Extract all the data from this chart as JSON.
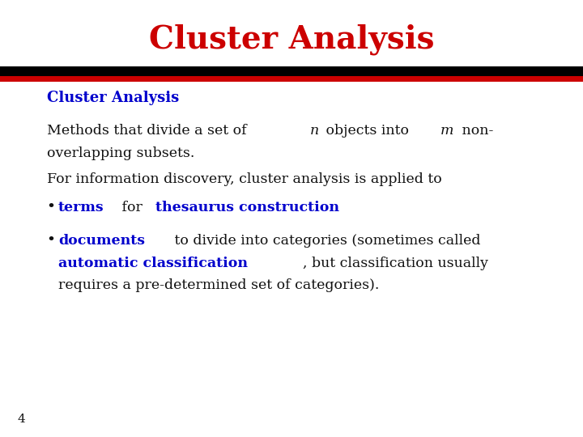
{
  "title": "Cluster Analysis",
  "title_color": "#cc0000",
  "title_fontsize": 28,
  "title_font": "serif",
  "background_color": "#ffffff",
  "subtitle_text": "Cluster Analysis",
  "subtitle_color": "#0000cc",
  "subtitle_fontsize": 13,
  "body_fontsize": 12.5,
  "body_font": "serif",
  "body_color": "#111111",
  "blue_color": "#0000cc",
  "line2": "For information discovery, cluster analysis is applied to",
  "bullet1_blue1": "terms",
  "bullet1_plain1": " for ",
  "bullet1_blue2": "thesaurus construction",
  "bullet2_blue1": "documents",
  "bullet2_blue2": "automatic classification",
  "page_number": "4",
  "page_number_fontsize": 11
}
